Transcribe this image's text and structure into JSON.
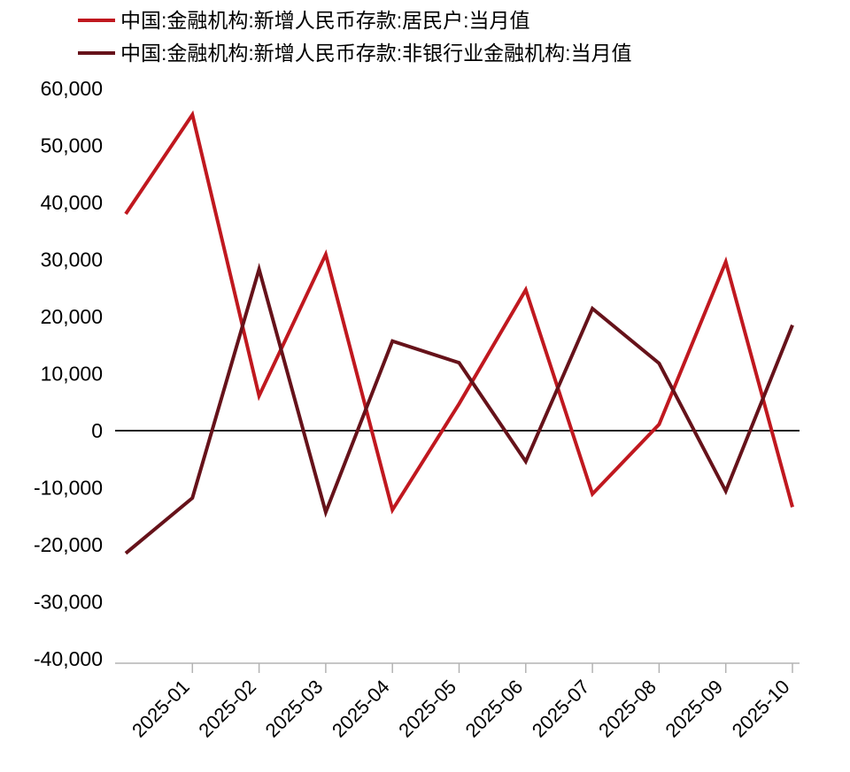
{
  "chart_data": {
    "type": "line",
    "title": "",
    "xlabel": "",
    "ylabel": "",
    "x_labels": [
      "",
      "2025-01",
      "2025-02",
      "2025-03",
      "2025-04",
      "2025-05",
      "2025-06",
      "2025-07",
      "2025-08",
      "2025-09",
      "2025-10"
    ],
    "series": [
      {
        "name": "中国:金融机构:新增人民币存款:居民户:当月值",
        "color": "#C0181F",
        "values": [
          38000,
          55400,
          6100,
          30900,
          -13900,
          4700,
          24700,
          -11100,
          1100,
          29600,
          -13400
        ]
      },
      {
        "name": "中国:金融机构:新增人民币存款:非银行业金融机构:当月值",
        "color": "#66121A",
        "values": [
          -21500,
          -11800,
          28300,
          -14300,
          15700,
          11900,
          -5400,
          21400,
          11800,
          -10600,
          18500
        ]
      }
    ],
    "ylim": [
      -40000,
      60000
    ],
    "y_tick_step": 10000,
    "grid": false,
    "legend_position": "top-left",
    "axis_color": "#b3b3b3",
    "zero_line_color": "#1a1a1a",
    "text_color": "#000000",
    "line_width": 4
  }
}
